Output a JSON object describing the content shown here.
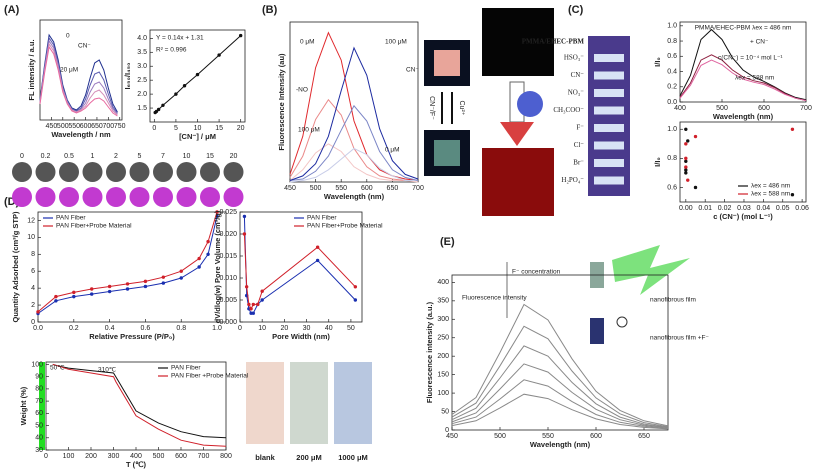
{
  "panels": [
    "(A)",
    "(B)",
    "(C)",
    "(D)",
    "(E)"
  ],
  "panel_a_circles": {
    "labels": [
      "0",
      "0.2",
      "0.5",
      "1",
      "2",
      "5",
      "7",
      "10",
      "15",
      "20"
    ]
  },
  "panel_b_images": {
    "labels": [
      "CN⁻/F⁻",
      "Cu²⁺"
    ]
  },
  "panel_c_strip": {
    "labels": [
      "PMMA/EHEC-PBM",
      "HSO₃⁻",
      "CN⁻",
      "NO₃⁻",
      "CH₃COO⁻",
      "F⁻",
      "Cl⁻",
      "Br⁻",
      "H₂PO₄⁻"
    ]
  },
  "panel_d_photos": {
    "labels": [
      "blank",
      "200 μM",
      "1000 μM"
    ]
  },
  "panel_e_labels": {
    "labels": [
      "nanofibrous film",
      "nanofibrous film +F⁻"
    ]
  },
  "chart_data": [
    {
      "type": "line",
      "x_label": "Wavelength / nm",
      "y_label": "FL intensity / a.u.",
      "x": [
        400,
        420,
        440,
        460,
        480,
        500,
        520,
        540,
        560,
        580,
        600,
        620,
        640,
        660,
        680,
        700,
        720,
        740
      ],
      "xlim": [
        400,
        760
      ],
      "ylim": [
        0,
        100
      ],
      "xticks": [
        450,
        500,
        550,
        600,
        650,
        700,
        750
      ],
      "annotations": [
        "0",
        "CN⁻",
        "20 μM"
      ],
      "series": [
        {
          "color": "#1f2f8f",
          "values": [
            20,
            55,
            85,
            78,
            60,
            35,
            20,
            12,
            10,
            14,
            25,
            42,
            57,
            60,
            50,
            32,
            16,
            8
          ]
        },
        {
          "color": "#5a5bb0",
          "values": [
            19,
            53,
            82,
            75,
            57,
            33,
            19,
            11,
            9,
            12,
            21,
            35,
            46,
            48,
            40,
            26,
            13,
            7
          ]
        },
        {
          "color": "#9b7cc0",
          "values": [
            18,
            51,
            79,
            72,
            55,
            31,
            18,
            10,
            8,
            11,
            17,
            28,
            36,
            38,
            32,
            21,
            11,
            6
          ]
        },
        {
          "color": "#d48fb8",
          "values": [
            17,
            49,
            76,
            69,
            52,
            30,
            17,
            10,
            8,
            10,
            14,
            22,
            28,
            30,
            25,
            17,
            9,
            5
          ]
        },
        {
          "color": "#e86aa0",
          "values": [
            16,
            47,
            73,
            66,
            50,
            28,
            16,
            9,
            7,
            9,
            12,
            17,
            21,
            22,
            19,
            13,
            7,
            4
          ]
        }
      ]
    },
    {
      "type": "line",
      "markers": true,
      "x_label": "[CN⁻] / μM",
      "y_label": "I₆₅₀/I₄₅₀",
      "x": [
        0.2,
        0.5,
        1,
        2,
        5,
        7,
        10,
        15,
        20
      ],
      "xlim": [
        -1,
        21
      ],
      "ylim": [
        1.0,
        4.3
      ],
      "xticks": [
        0,
        5,
        10,
        15,
        20
      ],
      "yticks": [
        1.5,
        {
          "value": 2,
          "label": "2.0"
        },
        2.5,
        {
          "value": 3,
          "label": "3.0"
        },
        3.5,
        {
          "value": 4,
          "label": "4.0"
        }
      ],
      "annotations": [
        "Y = 0.14x + 1.31",
        "R² = 0.996"
      ],
      "series": [
        {
          "color": "#111111",
          "values": [
            1.34,
            1.38,
            1.45,
            1.6,
            2.0,
            2.3,
            2.7,
            3.4,
            4.1
          ]
        }
      ]
    },
    {
      "type": "line",
      "x_label": "Wavelength (nm)",
      "y_label": "Fluorescence Intensity (au)",
      "x": [
        450,
        475,
        500,
        525,
        550,
        575,
        600,
        625,
        650,
        675,
        700
      ],
      "xlim": [
        450,
        700
      ],
      "ylim": [
        0,
        105
      ],
      "xticks": [
        450,
        500,
        550,
        600,
        650,
        700
      ],
      "annotations": [
        "0 μM",
        "100 μM",
        "100 μM",
        "0 μM",
        "-NO",
        "CN⁻"
      ],
      "series": [
        {
          "color": "#f3c6c6",
          "values": [
            1,
            8,
            19,
            25,
            20,
            10,
            5,
            2,
            1,
            1,
            0
          ]
        },
        {
          "color": "#ea8a8a",
          "values": [
            3,
            17,
            41,
            54,
            44,
            22,
            10,
            4,
            2,
            1,
            1
          ]
        },
        {
          "color": "#e0282c",
          "values": [
            5,
            30,
            75,
            98,
            80,
            40,
            18,
            8,
            4,
            2,
            1
          ]
        },
        {
          "color": "#c8cde8",
          "values": [
            0,
            1,
            3,
            8,
            15,
            22,
            18,
            9,
            4,
            1,
            1
          ]
        },
        {
          "color": "#7c86c6",
          "values": [
            1,
            2,
            7,
            17,
            34,
            50,
            40,
            20,
            8,
            3,
            1
          ]
        },
        {
          "color": "#1c2aa0",
          "values": [
            1,
            4,
            12,
            30,
            60,
            88,
            70,
            35,
            14,
            5,
            2
          ]
        }
      ]
    },
    {
      "type": "line",
      "x_label": "Wavelength (nm)",
      "y_label": "I/I₀",
      "x": [
        400,
        425,
        450,
        475,
        500,
        525,
        550,
        575,
        600,
        625,
        650,
        675,
        700
      ],
      "xlim": [
        400,
        700
      ],
      "ylim": [
        0,
        1.05
      ],
      "xticks": [
        400,
        500,
        600,
        700
      ],
      "yticks": [
        {
          "value": 0,
          "label": "0.0"
        },
        0.2,
        0.4,
        0.6,
        0.8,
        {
          "value": 1,
          "label": "1.0"
        }
      ],
      "annotations": [
        "PMMA/EHEC-PBM λex = 486 nm",
        "+ CN⁻",
        "c(CN⁻) = 10⁻⁴ mol L⁻¹",
        "λex = 588 nm"
      ],
      "series": [
        {
          "color": "#111111",
          "values": [
            0.08,
            0.35,
            0.82,
            0.95,
            0.82,
            0.58,
            0.42,
            0.33,
            0.27,
            0.2,
            0.12,
            0.06,
            0.03
          ]
        },
        {
          "color": "#8e2040",
          "values": [
            0.06,
            0.25,
            0.55,
            0.62,
            0.55,
            0.42,
            0.33,
            0.28,
            0.25,
            0.19,
            0.11,
            0.05,
            0.02
          ]
        },
        {
          "color": "#e066a0",
          "values": [
            0.05,
            0.22,
            0.48,
            0.55,
            0.49,
            0.38,
            0.3,
            0.26,
            0.23,
            0.17,
            0.1,
            0.05,
            0.02
          ]
        }
      ]
    },
    {
      "type": "scatter",
      "x_label": "c (CN⁻) (mol L⁻¹)",
      "y_label": "I/I₀",
      "legend": "lower right",
      "xlim": [
        -0.003,
        0.062
      ],
      "ylim": [
        0.5,
        1.05
      ],
      "xticks": [
        {
          "value": 0,
          "label": "0.00"
        },
        0.01,
        0.02,
        0.03,
        0.04,
        0.05,
        {
          "value": 0.06,
          "label": "0.06"
        }
      ],
      "yticks": [
        0.6,
        0.8,
        {
          "value": 1,
          "label": "1.0"
        }
      ],
      "series": [
        {
          "name": "λex = 486 nm",
          "color": "#111111",
          "x": [
            0,
            0,
            0,
            0,
            0.001,
            0.005,
            0.055
          ],
          "values": [
            1.0,
            0.78,
            0.72,
            0.7,
            0.92,
            0.6,
            0.55
          ]
        },
        {
          "name": "λex = 588 nm",
          "color": "#d0202a",
          "x": [
            0,
            0,
            0,
            0.001,
            0.005,
            0.055
          ],
          "values": [
            0.9,
            0.8,
            0.74,
            0.65,
            0.95,
            1.0
          ]
        }
      ]
    },
    {
      "type": "line",
      "markers": true,
      "x_label": "Relative Pressure (P/P₀)",
      "y_label": "Quantity Adsorbed (cm³/g STP)",
      "legend": "upper left",
      "x": [
        0,
        0.1,
        0.2,
        0.3,
        0.4,
        0.5,
        0.6,
        0.7,
        0.8,
        0.9,
        0.95,
        1.0
      ],
      "xlim": [
        0,
        1.05
      ],
      "ylim": [
        0,
        13
      ],
      "xticks": [
        {
          "value": 0,
          "label": "0.0"
        },
        0.2,
        0.4,
        0.6,
        0.8,
        {
          "value": 1,
          "label": "1.0"
        }
      ],
      "yticks": [
        0,
        2,
        4,
        6,
        8,
        10,
        12
      ],
      "series": [
        {
          "name": "PAN Fiber",
          "color": "#1a2fb0",
          "values": [
            1,
            2.5,
            3,
            3.3,
            3.6,
            3.9,
            4.2,
            4.6,
            5.2,
            6.5,
            8,
            12.5
          ]
        },
        {
          "name": "PAN Fiber+Probe Material",
          "color": "#d0202a",
          "values": [
            1.2,
            3,
            3.5,
            3.9,
            4.2,
            4.5,
            4.8,
            5.3,
            6,
            7.5,
            9.5,
            13
          ]
        }
      ]
    },
    {
      "type": "line",
      "markers": true,
      "x_label": "Pore Width (nm)",
      "y_label": "dV/dlog(w) Pore Volume (cm³/g)",
      "legend": "upper right",
      "x": [
        2,
        3,
        4,
        5,
        6,
        8,
        10,
        35,
        52
      ],
      "xlim": [
        0,
        55
      ],
      "ylim": [
        0,
        0.025
      ],
      "xticks": [
        0,
        10,
        20,
        30,
        40,
        50
      ],
      "yticks": [
        {
          "value": 0,
          "label": "0.000"
        },
        0.005,
        {
          "value": 0.01,
          "label": "0.010"
        },
        0.015,
        {
          "value": 0.02,
          "label": "0.020"
        },
        0.025
      ],
      "series": [
        {
          "name": "PAN Fiber",
          "color": "#1a2fb0",
          "values": [
            0.024,
            0.006,
            0.003,
            0.002,
            0.002,
            0.004,
            0.005,
            0.014,
            0.005
          ]
        },
        {
          "name": "PAN Fiber+Probe Material",
          "color": "#d0202a",
          "values": [
            0.02,
            0.008,
            0.004,
            0.003,
            0.004,
            0.004,
            0.007,
            0.017,
            0.008
          ]
        }
      ]
    },
    {
      "type": "line",
      "x_label": "T (℃)",
      "y_label": "Weight (%)",
      "legend": "upper right",
      "x": [
        30,
        50,
        100,
        200,
        300,
        310,
        400,
        500,
        600,
        700,
        800
      ],
      "xlim": [
        0,
        800
      ],
      "ylim": [
        30,
        102
      ],
      "xticks": [
        0,
        100,
        200,
        300,
        400,
        500,
        600,
        700,
        800
      ],
      "yticks": [
        30,
        40,
        50,
        60,
        70,
        80,
        90,
        100
      ],
      "annotations": [
        "50℃",
        "310℃"
      ],
      "series": [
        {
          "name": "PAN Fiber",
          "color": "#111111",
          "values": [
            100,
            99,
            97,
            95,
            93,
            90,
            62,
            52,
            45,
            41,
            40
          ]
        },
        {
          "name": "PAN Fiber +Probe Material",
          "color": "#d0202a",
          "values": [
            100,
            99,
            96,
            93,
            90,
            86,
            58,
            47,
            38,
            34,
            33
          ]
        }
      ]
    },
    {
      "type": "line",
      "x_label": "Wavelength (nm)",
      "y_label": "Fluorescence intensity (a.u.)",
      "x": [
        450,
        475,
        500,
        525,
        550,
        575,
        600,
        625,
        650,
        675
      ],
      "xlim": [
        450,
        675
      ],
      "ylim": [
        0,
        420
      ],
      "xticks": [
        450,
        500,
        550,
        600,
        650
      ],
      "yticks": [
        0,
        50,
        100,
        150,
        200,
        250,
        300,
        350,
        400
      ],
      "annotations": [
        "Fluorescence intensity",
        "F⁻ concentration"
      ],
      "series": [
        {
          "color": "#8a8a8a",
          "values": [
            42,
            88,
            210,
            340,
            298,
            193,
            105,
            53,
            25,
            11
          ]
        },
        {
          "color": "#8a8a8a",
          "values": [
            35,
            73,
            174,
            281,
            247,
            160,
            87,
            44,
            20,
            9
          ]
        },
        {
          "color": "#8a8a8a",
          "values": [
            28,
            59,
            141,
            228,
            200,
            129,
            71,
            35,
            16,
            7
          ]
        },
        {
          "color": "#8a8a8a",
          "values": [
            22,
            46,
            111,
            179,
            157,
            102,
            56,
            28,
            13,
            6
          ]
        },
        {
          "color": "#8a8a8a",
          "values": [
            17,
            35,
            84,
            136,
            119,
            77,
            42,
            21,
            10,
            4
          ]
        },
        {
          "color": "#8a8a8a",
          "values": [
            12,
            25,
            60,
            97,
            85,
            55,
            30,
            15,
            7,
            3
          ]
        }
      ]
    }
  ]
}
